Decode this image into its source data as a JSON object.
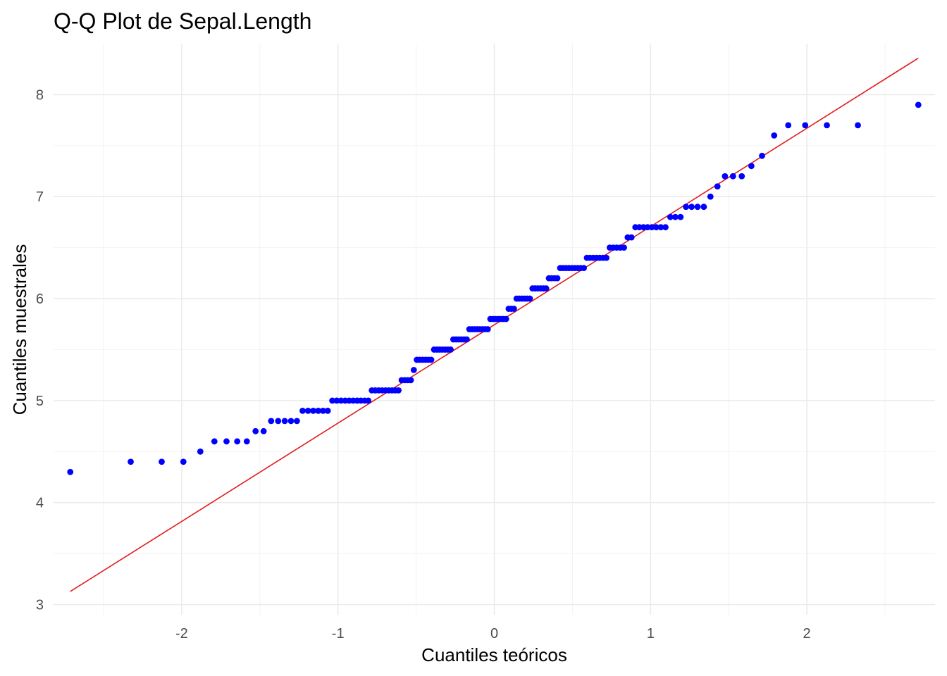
{
  "chart_data": {
    "type": "scatter",
    "title": "Q-Q Plot de Sepal.Length",
    "xlabel": "Cuantiles teóricos",
    "ylabel": "Cuantiles muestrales",
    "xlim": [
      -2.82,
      2.82
    ],
    "ylim": [
      2.9,
      8.5
    ],
    "x_ticks": [
      -2,
      -1,
      0,
      1,
      2
    ],
    "x_tick_labels": [
      "-2",
      "-1",
      "0",
      "1",
      "2"
    ],
    "y_ticks": [
      3,
      4,
      5,
      6,
      7,
      8
    ],
    "y_tick_labels": [
      "3",
      "4",
      "5",
      "6",
      "7",
      "8"
    ],
    "grid": true,
    "point_color": "#0000ff",
    "line_color": "#e31a1c",
    "reference_line": {
      "x": [
        -2.713,
        2.713
      ],
      "y": [
        3.128,
        8.358
      ]
    },
    "sample_values": [
      4.3,
      4.4,
      4.4,
      4.4,
      4.5,
      4.6,
      4.6,
      4.6,
      4.6,
      4.7,
      4.7,
      4.8,
      4.8,
      4.8,
      4.8,
      4.8,
      4.9,
      4.9,
      4.9,
      4.9,
      4.9,
      4.9,
      5.0,
      5.0,
      5.0,
      5.0,
      5.0,
      5.0,
      5.0,
      5.0,
      5.0,
      5.0,
      5.1,
      5.1,
      5.1,
      5.1,
      5.1,
      5.1,
      5.1,
      5.1,
      5.1,
      5.2,
      5.2,
      5.2,
      5.2,
      5.3,
      5.4,
      5.4,
      5.4,
      5.4,
      5.4,
      5.4,
      5.5,
      5.5,
      5.5,
      5.5,
      5.5,
      5.5,
      5.5,
      5.6,
      5.6,
      5.6,
      5.6,
      5.6,
      5.6,
      5.7,
      5.7,
      5.7,
      5.7,
      5.7,
      5.7,
      5.7,
      5.7,
      5.8,
      5.8,
      5.8,
      5.8,
      5.8,
      5.8,
      5.8,
      5.9,
      5.9,
      5.9,
      6.0,
      6.0,
      6.0,
      6.0,
      6.0,
      6.0,
      6.1,
      6.1,
      6.1,
      6.1,
      6.1,
      6.1,
      6.2,
      6.2,
      6.2,
      6.2,
      6.3,
      6.3,
      6.3,
      6.3,
      6.3,
      6.3,
      6.3,
      6.3,
      6.3,
      6.4,
      6.4,
      6.4,
      6.4,
      6.4,
      6.4,
      6.4,
      6.5,
      6.5,
      6.5,
      6.5,
      6.5,
      6.6,
      6.6,
      6.7,
      6.7,
      6.7,
      6.7,
      6.7,
      6.7,
      6.7,
      6.7,
      6.8,
      6.8,
      6.8,
      6.9,
      6.9,
      6.9,
      6.9,
      7.0,
      7.1,
      7.2,
      7.2,
      7.2,
      7.3,
      7.4,
      7.6,
      7.7,
      7.7,
      7.7,
      7.7,
      7.9
    ]
  }
}
